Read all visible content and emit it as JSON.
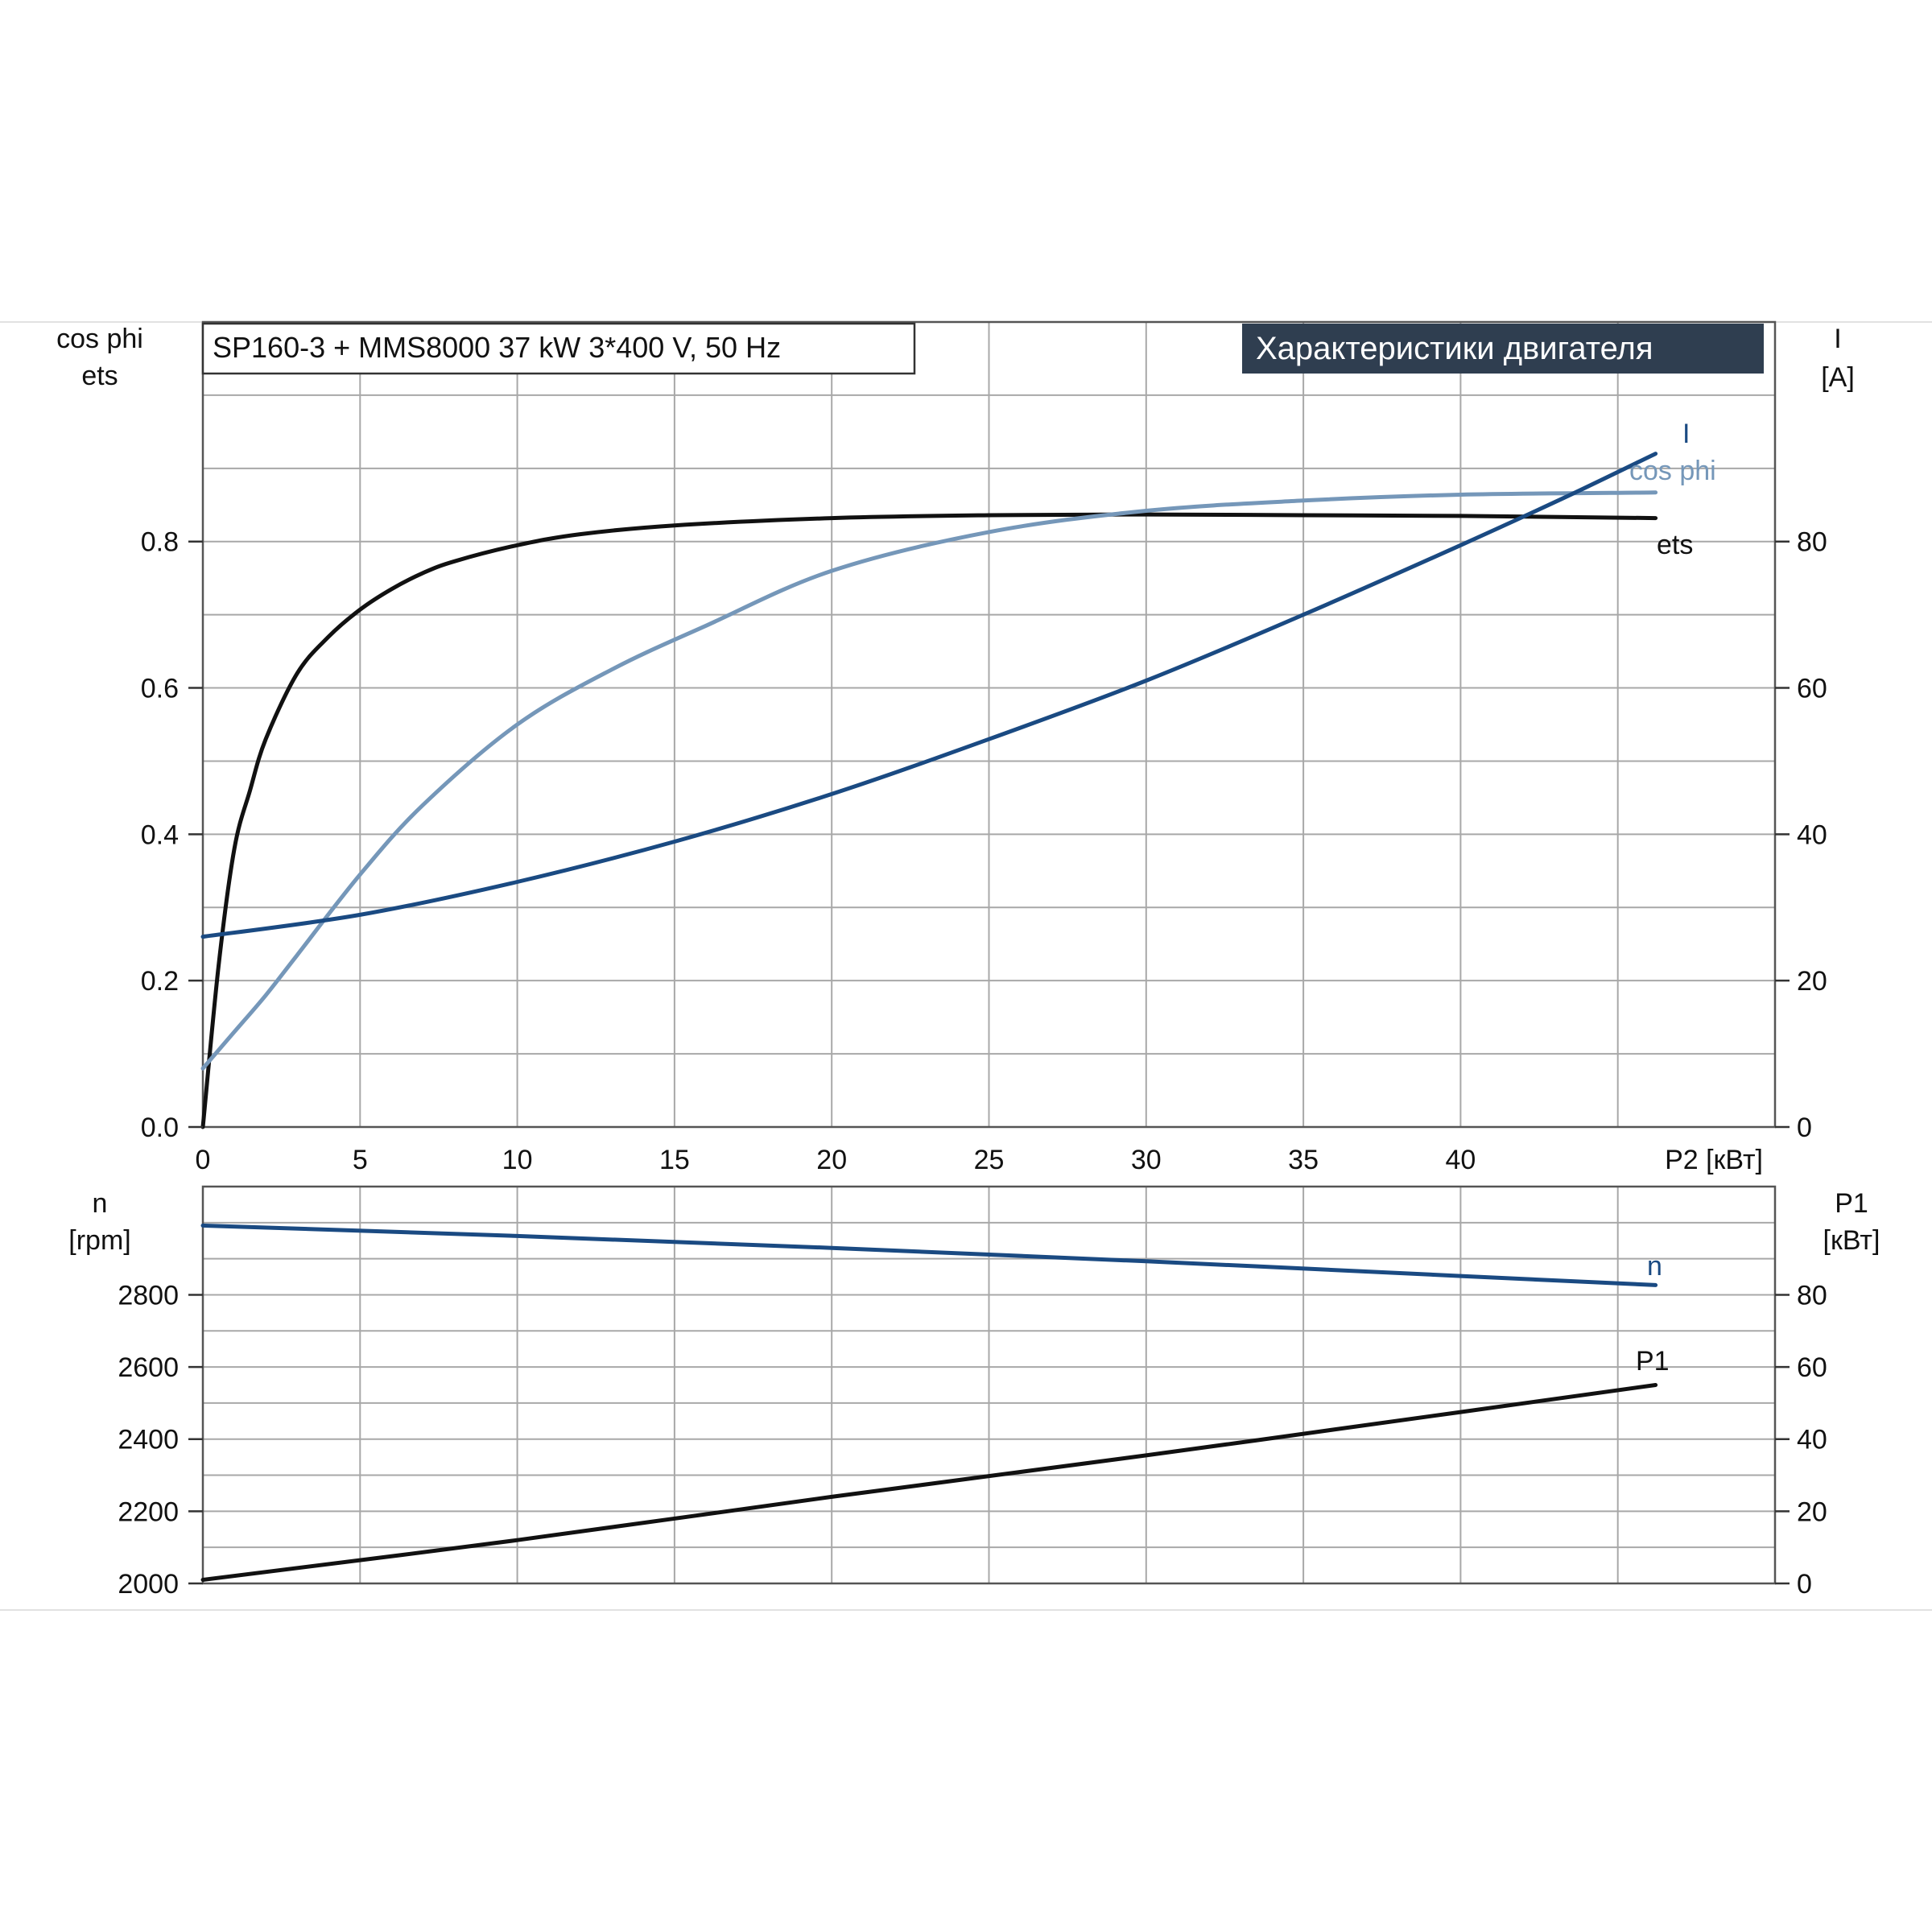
{
  "chart_data": [
    {
      "type": "line",
      "title": "Характеристики двигателя",
      "subtitle": "SP160-3 + MMS8000   37 kW   3*400 V, 50 Hz",
      "xlabel": "P2 [кВт]",
      "xlim": [
        0,
        50
      ],
      "xticks": [
        "0",
        "5",
        "10",
        "15",
        "20",
        "25",
        "30",
        "35",
        "40"
      ],
      "left_axis": {
        "label_line1": "cos phi",
        "label_line2": "ets",
        "ylim": [
          0,
          1.1
        ],
        "ticks": [
          "0.0",
          "0.2",
          "0.4",
          "0.6",
          "0.8"
        ]
      },
      "right_axis": {
        "label_line1": "I",
        "label_line2": "[A]",
        "ylim": [
          0,
          110
        ],
        "ticks": [
          "0",
          "20",
          "40",
          "60",
          "80"
        ]
      },
      "grid": true,
      "series": [
        {
          "name": "ets",
          "axis": "left",
          "color": "#111111",
          "x": [
            0,
            0.5,
            1,
            1.5,
            2,
            3,
            4,
            5,
            6,
            7,
            8,
            10,
            12,
            15,
            20,
            25,
            30,
            35,
            40,
            46.2
          ],
          "y": [
            0,
            0.22,
            0.38,
            0.46,
            0.53,
            0.62,
            0.67,
            0.707,
            0.735,
            0.757,
            0.773,
            0.795,
            0.81,
            0.822,
            0.832,
            0.836,
            0.837,
            0.836,
            0.835,
            0.832
          ]
        },
        {
          "name": "cos phi",
          "axis": "left",
          "color": "#7597b9",
          "x": [
            0,
            1,
            2,
            3,
            5,
            7,
            10,
            13,
            16,
            20,
            25,
            30,
            35,
            40,
            46.2
          ],
          "y": [
            0.08,
            0.13,
            0.18,
            0.235,
            0.345,
            0.44,
            0.55,
            0.625,
            0.685,
            0.76,
            0.813,
            0.842,
            0.856,
            0.864,
            0.867
          ]
        },
        {
          "name": "I",
          "axis": "right",
          "color": "#1a4a82",
          "x": [
            0,
            5,
            10,
            15,
            20,
            25,
            30,
            35,
            40,
            43.3,
            46.2
          ],
          "y": [
            26,
            29,
            33.5,
            39,
            45.5,
            53,
            61,
            70,
            79.5,
            86,
            92
          ]
        }
      ]
    },
    {
      "type": "line",
      "xlim": [
        0,
        50
      ],
      "left_axis": {
        "label_line1": "n",
        "label_line2": "[rpm]",
        "ylim": [
          2000,
          3100
        ],
        "ticks": [
          "2000",
          "2200",
          "2400",
          "2600",
          "2800"
        ]
      },
      "right_axis": {
        "label_line1": "P1",
        "label_line2": "[кВт]",
        "ylim": [
          0,
          110
        ],
        "ticks": [
          "0",
          "20",
          "40",
          "60",
          "80"
        ]
      },
      "grid": true,
      "series": [
        {
          "name": "n",
          "axis": "left",
          "color": "#1a4a82",
          "x": [
            0,
            10,
            20,
            30,
            40,
            46.2
          ],
          "y": [
            2992,
            2963,
            2930,
            2893,
            2852,
            2827
          ]
        },
        {
          "name": "P1",
          "axis": "right",
          "color": "#111111",
          "x": [
            0,
            10,
            20,
            30,
            40,
            46.2
          ],
          "y": [
            1,
            12,
            24,
            35.5,
            47.5,
            55
          ]
        }
      ]
    }
  ]
}
